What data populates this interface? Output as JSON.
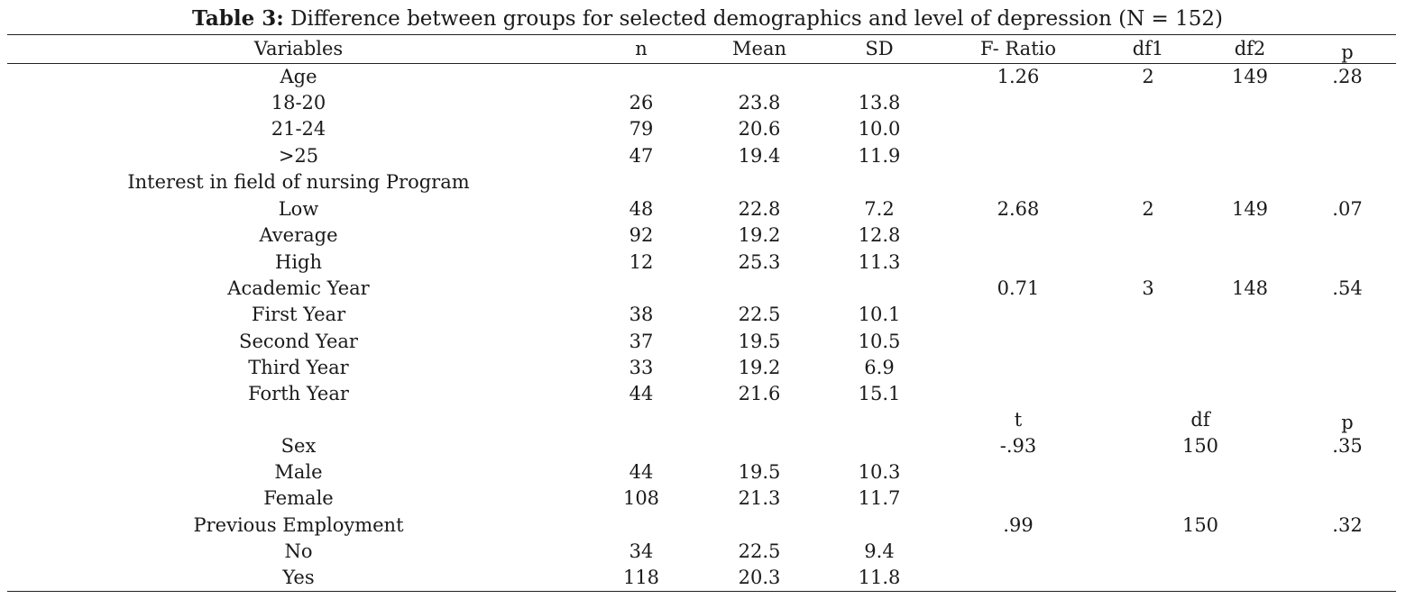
{
  "caption": {
    "label": "Table 3:",
    "text": " Difference between groups for selected demographics and level of depression (N = 152)"
  },
  "header": {
    "variables": "Variables",
    "n": "n",
    "mean": "Mean",
    "sd": "SD",
    "f_ratio": "F- Ratio",
    "df1": "df1",
    "df2": "df2",
    "p": "p"
  },
  "subheader": {
    "t": "t",
    "df": "df",
    "p": "p"
  },
  "rows": [
    {
      "variable": "Age",
      "n": "",
      "mean": "",
      "sd": "",
      "f": "1.26",
      "df1": "2",
      "df2": "149",
      "p": ".28"
    },
    {
      "variable": "18-20",
      "n": "26",
      "mean": "23.8",
      "sd": "13.8",
      "f": "",
      "df1": "",
      "df2": "",
      "p": ""
    },
    {
      "variable": "21-24",
      "n": "79",
      "mean": "20.6",
      "sd": "10.0",
      "f": "",
      "df1": "",
      "df2": "",
      "p": ""
    },
    {
      "variable": ">25",
      "n": "47",
      "mean": "19.4",
      "sd": "11.9",
      "f": "",
      "df1": "",
      "df2": "",
      "p": ""
    },
    {
      "variable": "Interest in field of nursing  Program",
      "n": "",
      "mean": "",
      "sd": "",
      "f": "",
      "df1": "",
      "df2": "",
      "p": ""
    },
    {
      "variable": "Low",
      "n": "48",
      "mean": "22.8",
      "sd": "7.2",
      "f": "2.68",
      "df1": "2",
      "df2": "149",
      "p": ".07"
    },
    {
      "variable": "Average",
      "n": "92",
      "mean": "19.2",
      "sd": "12.8",
      "f": "",
      "df1": "",
      "df2": "",
      "p": ""
    },
    {
      "variable": "High",
      "n": "12",
      "mean": "25.3",
      "sd": "11.3",
      "f": "",
      "df1": "",
      "df2": "",
      "p": ""
    },
    {
      "variable": "Academic Year",
      "n": "",
      "mean": "",
      "sd": "",
      "f": "0.71",
      "df1": "3",
      "df2": "148",
      "p": ".54"
    },
    {
      "variable": "First Year",
      "n": "38",
      "mean": "22.5",
      "sd": "10.1",
      "f": "",
      "df1": "",
      "df2": "",
      "p": ""
    },
    {
      "variable": "Second Year",
      "n": "37",
      "mean": "19.5",
      "sd": "10.5",
      "f": "",
      "df1": "",
      "df2": "",
      "p": ""
    },
    {
      "variable": "Third Year",
      "n": "33",
      "mean": "19.2",
      "sd": "6.9",
      "f": "",
      "df1": "",
      "df2": "",
      "p": ""
    },
    {
      "variable": "Forth Year",
      "n": "44",
      "mean": "21.6",
      "sd": "15.1",
      "f": "",
      "df1": "",
      "df2": "",
      "p": ""
    },
    {
      "variable": "Sex",
      "n": "",
      "mean": "",
      "sd": "",
      "t": "-.93",
      "df": "150",
      "p": ".35"
    },
    {
      "variable": "Male",
      "n": "44",
      "mean": "19.5",
      "sd": "10.3",
      "t": "",
      "df": "",
      "p": ""
    },
    {
      "variable": "Female",
      "n": "108",
      "mean": "21.3",
      "sd": "11.7",
      "t": "",
      "df": "",
      "p": ""
    },
    {
      "variable": "Previous Employment",
      "n": "",
      "mean": "",
      "sd": "",
      "t": ".99",
      "df": "150",
      "p": ".32"
    },
    {
      "variable": "No",
      "n": "34",
      "mean": "22.5",
      "sd": "9.4",
      "t": "",
      "df": "",
      "p": ""
    },
    {
      "variable": "Yes",
      "n": "118",
      "mean": "20.3",
      "sd": "11.8",
      "t": "",
      "df": "",
      "p": ""
    }
  ]
}
